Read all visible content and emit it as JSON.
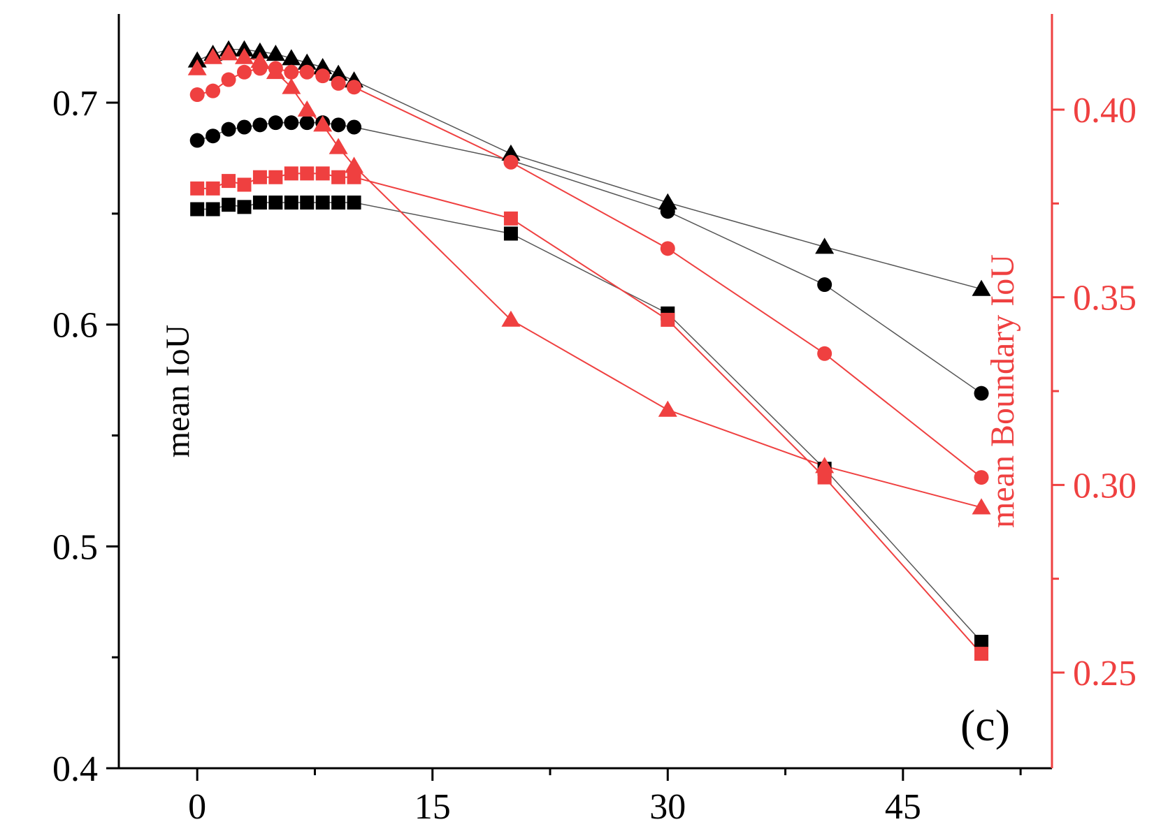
{
  "chart_data": {
    "type": "line",
    "title": "",
    "panel_label": "(c)",
    "xlabel": "",
    "xlim": [
      -5,
      54.5
    ],
    "x_ticks": [
      0,
      15,
      30,
      45
    ],
    "x_tick_labels": [
      "0",
      "15",
      "30",
      "45"
    ],
    "x_minor_ticks": [
      7.5,
      22.5,
      37.5,
      52.5
    ],
    "left_axis": {
      "label": "mean IoU",
      "color": "#000000",
      "ylim": [
        0.4,
        0.74
      ],
      "ticks": [
        0.4,
        0.5,
        0.6,
        0.7
      ],
      "tick_labels": [
        "0.4",
        "0.5",
        "0.6",
        "0.7"
      ],
      "minor_ticks": [
        0.45,
        0.55,
        0.65
      ]
    },
    "right_axis": {
      "label": "mean Boundary IoU",
      "color": "#ef4040",
      "ylim": [
        0.2245,
        0.4255
      ],
      "ticks": [
        0.25,
        0.3,
        0.35,
        0.4
      ],
      "tick_labels": [
        "0.25",
        "0.30",
        "0.35",
        "0.40"
      ],
      "minor_ticks": [
        0.275,
        0.325,
        0.375
      ]
    },
    "series": [
      {
        "name": "mean IoU (triangle)",
        "axis": "left",
        "marker": "triangle",
        "color": "#000000",
        "line_color": "#555555",
        "x": [
          0,
          1,
          2,
          3,
          4,
          5,
          6,
          7,
          8,
          9,
          10,
          20,
          30,
          40,
          50
        ],
        "values": [
          0.719,
          0.722,
          0.724,
          0.724,
          0.723,
          0.722,
          0.72,
          0.718,
          0.716,
          0.713,
          0.71,
          0.677,
          0.655,
          0.635,
          0.616
        ]
      },
      {
        "name": "mean IoU (circle)",
        "axis": "left",
        "marker": "circle",
        "color": "#000000",
        "line_color": "#555555",
        "x": [
          0,
          1,
          2,
          3,
          4,
          5,
          6,
          7,
          8,
          9,
          10,
          20,
          30,
          40,
          50
        ],
        "values": [
          0.683,
          0.685,
          0.688,
          0.689,
          0.69,
          0.691,
          0.691,
          0.691,
          0.691,
          0.69,
          0.689,
          0.674,
          0.651,
          0.618,
          0.569
        ]
      },
      {
        "name": "mean IoU (square)",
        "axis": "left",
        "marker": "square",
        "color": "#000000",
        "line_color": "#555555",
        "x": [
          0,
          1,
          2,
          3,
          4,
          5,
          6,
          7,
          8,
          9,
          10,
          20,
          30,
          40,
          50
        ],
        "values": [
          0.652,
          0.652,
          0.654,
          0.653,
          0.655,
          0.655,
          0.655,
          0.655,
          0.655,
          0.655,
          0.655,
          0.641,
          0.605,
          0.535,
          0.457
        ]
      },
      {
        "name": "mean Boundary IoU (triangle)",
        "axis": "right",
        "marker": "triangle",
        "color": "#ef4040",
        "line_color": "#ef4040",
        "x": [
          0,
          1,
          2,
          3,
          4,
          5,
          6,
          7,
          8,
          9,
          10,
          20,
          30,
          40,
          50
        ],
        "values": [
          0.411,
          0.414,
          0.415,
          0.414,
          0.413,
          0.41,
          0.406,
          0.4,
          0.396,
          0.39,
          0.385,
          0.344,
          0.32,
          0.305,
          0.294
        ]
      },
      {
        "name": "mean Boundary IoU (circle)",
        "axis": "right",
        "marker": "circle",
        "color": "#ef4040",
        "line_color": "#ef4040",
        "x": [
          0,
          1,
          2,
          3,
          4,
          5,
          6,
          7,
          8,
          9,
          10,
          20,
          30,
          40,
          50
        ],
        "values": [
          0.404,
          0.405,
          0.408,
          0.41,
          0.411,
          0.411,
          0.41,
          0.41,
          0.409,
          0.407,
          0.406,
          0.386,
          0.363,
          0.335,
          0.302
        ]
      },
      {
        "name": "mean Boundary IoU (square)",
        "axis": "right",
        "marker": "square",
        "color": "#ef4040",
        "line_color": "#ef4040",
        "x": [
          0,
          1,
          2,
          3,
          4,
          5,
          6,
          7,
          8,
          9,
          10,
          20,
          30,
          40,
          50
        ],
        "values": [
          0.379,
          0.379,
          0.381,
          0.38,
          0.382,
          0.382,
          0.383,
          0.383,
          0.383,
          0.382,
          0.382,
          0.371,
          0.344,
          0.302,
          0.255
        ]
      }
    ]
  }
}
